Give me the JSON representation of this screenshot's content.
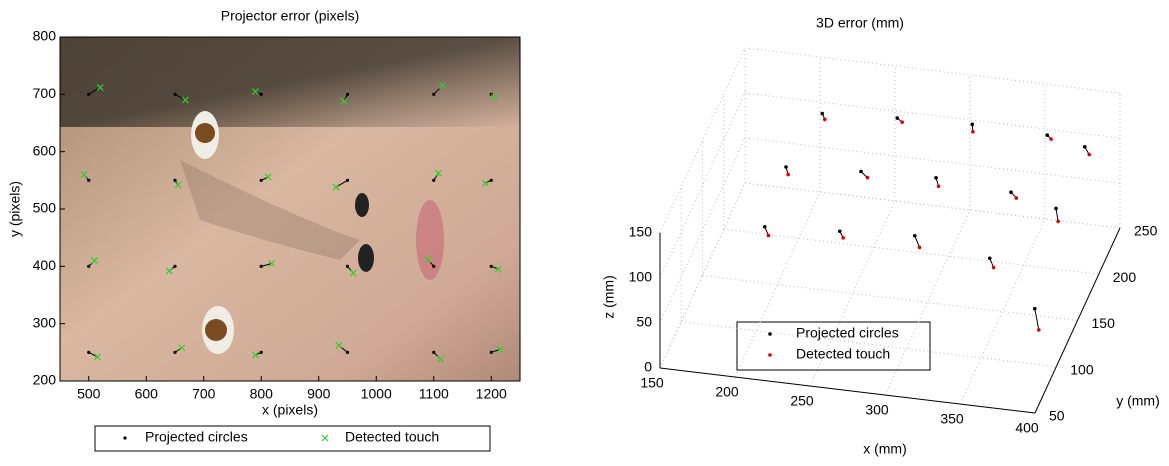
{
  "chart_data": [
    {
      "type": "scatter",
      "title": "Projector error (pixels)",
      "x_label": "x (pixels)",
      "y_label": "y (pixels)",
      "xlim": [
        450,
        1250
      ],
      "ylim": [
        200,
        800
      ],
      "xticks": [
        500,
        600,
        700,
        800,
        900,
        1000,
        1100,
        1200
      ],
      "yticks": [
        200,
        300,
        400,
        500,
        600,
        700,
        800
      ],
      "legend": "bottom",
      "series": [
        {
          "name": "Projected circles",
          "color": "#000000",
          "marker": "dot",
          "x": [
            500,
            650,
            800,
            950,
            1100,
            1200,
            500,
            650,
            800,
            950,
            1100,
            1200,
            500,
            650,
            800,
            950,
            1100,
            1200,
            500,
            650,
            800,
            950,
            1100,
            1200
          ],
          "values": [
            250,
            250,
            250,
            250,
            250,
            250,
            400,
            400,
            400,
            400,
            400,
            400,
            550,
            550,
            550,
            550,
            550,
            550,
            700,
            700,
            700,
            700,
            700,
            700
          ]
        },
        {
          "name": "Detected touch",
          "color": "#33cc33",
          "marker": "cross",
          "x": [
            515,
            662,
            790,
            935,
            1112,
            1215,
            510,
            640,
            818,
            960,
            1090,
            1212,
            492,
            655,
            812,
            930,
            1108,
            1190,
            520,
            668,
            790,
            944,
            1115,
            1205
          ],
          "values": [
            242,
            258,
            245,
            262,
            238,
            255,
            410,
            392,
            405,
            388,
            412,
            395,
            560,
            542,
            556,
            538,
            562,
            545,
            712,
            690,
            705,
            688,
            715,
            695
          ]
        }
      ]
    },
    {
      "type": "scatter3d",
      "title": "3D error (mm)",
      "x_label": "x (mm)",
      "y_label": "y (mm)",
      "z_label": "z (mm)",
      "xlim": [
        150,
        400
      ],
      "ylim": [
        50,
        250
      ],
      "zlim": [
        0,
        150
      ],
      "xticks": [
        150,
        200,
        250,
        300,
        350,
        400
      ],
      "yticks": [
        50,
        100,
        150,
        200,
        250
      ],
      "zticks": [
        0,
        50,
        100,
        150
      ],
      "legend": "lower left",
      "series": [
        {
          "name": "Projected circles",
          "color": "#000000",
          "x": [
            200,
            250,
            300,
            350,
            380,
            200,
            250,
            300,
            350,
            380,
            210,
            260,
            310,
            360,
            385
          ],
          "y": [
            120,
            120,
            120,
            120,
            120,
            170,
            170,
            170,
            170,
            170,
            220,
            220,
            220,
            220,
            220
          ],
          "values": [
            95,
            100,
            105,
            90,
            40,
            110,
            115,
            118,
            112,
            100,
            120,
            125,
            128,
            126,
            118
          ]
        },
        {
          "name": "Detected touch",
          "color": "#dd0000",
          "x": [
            203,
            252,
            304,
            352,
            383,
            202,
            254,
            302,
            353,
            382,
            212,
            263,
            311,
            362,
            388
          ],
          "y": [
            118,
            121,
            117,
            122,
            119,
            168,
            171,
            169,
            172,
            168,
            219,
            221,
            218,
            222,
            220
          ],
          "values": [
            88,
            92,
            96,
            78,
            18,
            104,
            108,
            110,
            104,
            88,
            115,
            120,
            122,
            120,
            110
          ]
        }
      ]
    }
  ]
}
